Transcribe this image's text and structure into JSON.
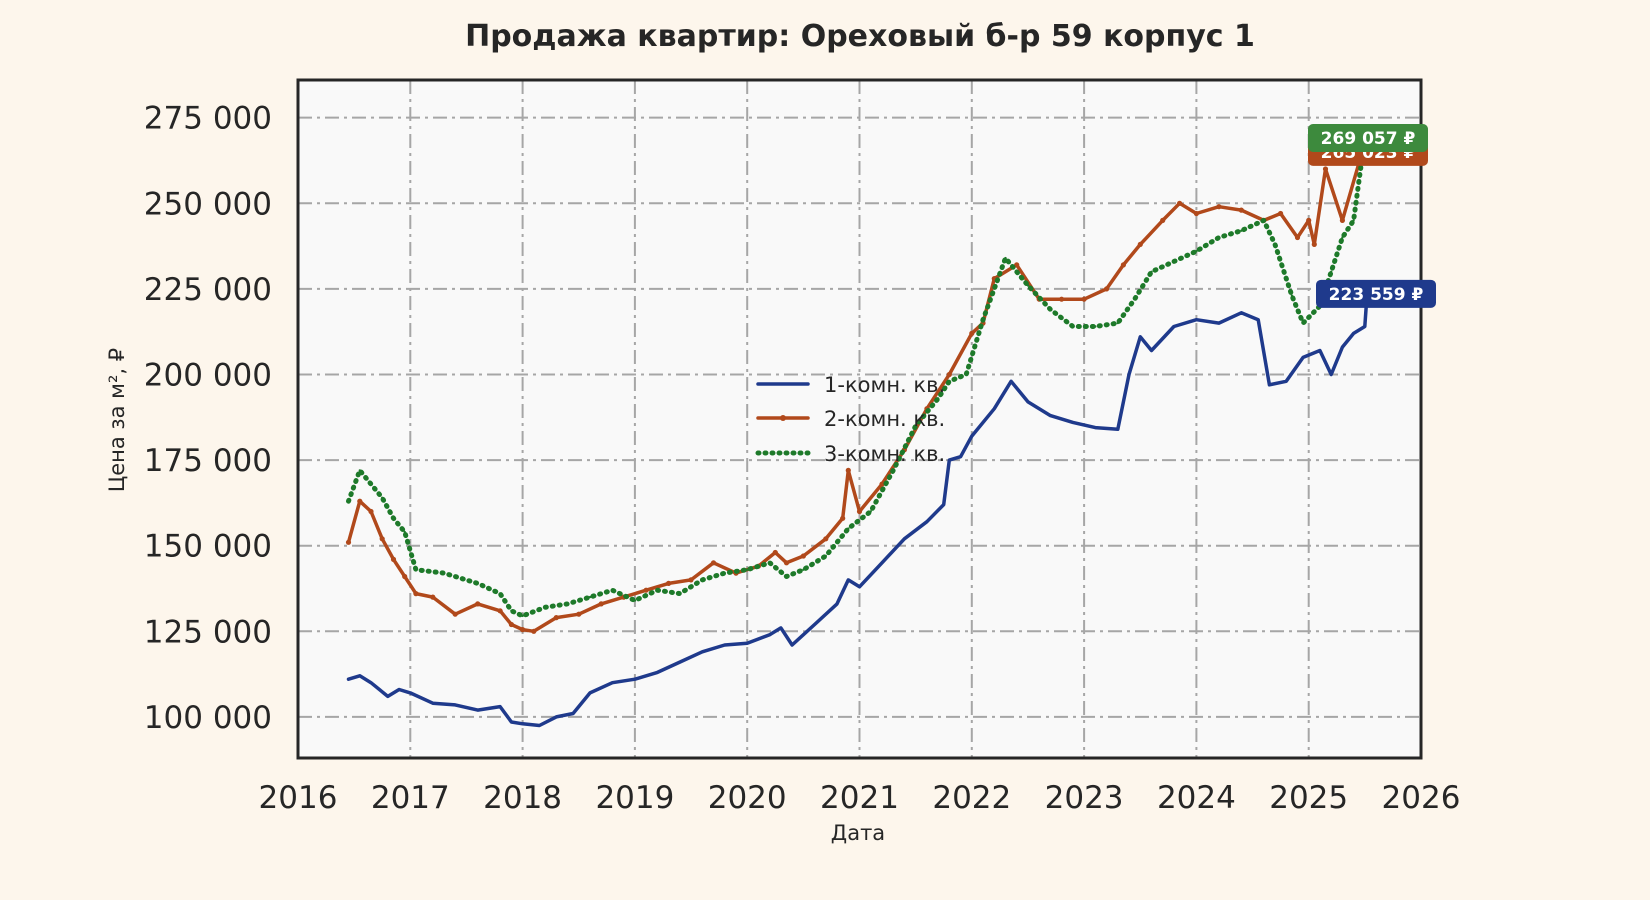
{
  "chart_data": {
    "type": "line",
    "title": "Продажа квартир: Ореховый б-р 59 корпус 1",
    "xlabel": "Дата",
    "ylabel": "Цена за м², ₽",
    "xlim": [
      2016.0,
      2026.0
    ],
    "ylim": [
      88000,
      286000
    ],
    "x_ticks": [
      2016,
      2017,
      2018,
      2019,
      2020,
      2021,
      2022,
      2023,
      2024,
      2025,
      2026
    ],
    "x_tick_labels": [
      "2016",
      "2017",
      "2018",
      "2019",
      "2020",
      "2021",
      "2022",
      "2023",
      "2024",
      "2025",
      "2026"
    ],
    "y_ticks": [
      100000,
      125000,
      150000,
      175000,
      200000,
      225000,
      250000,
      275000
    ],
    "y_tick_labels": [
      "100 000",
      "125 000",
      "150 000",
      "175 000",
      "200 000",
      "225 000",
      "250 000",
      "275 000"
    ],
    "grid": true,
    "legend_position": "center",
    "series": [
      {
        "name": "1-комн. кв.",
        "color": "#1f3a8c",
        "style": "solid",
        "x": [
          2016.45,
          2016.55,
          2016.65,
          2016.8,
          2016.9,
          2017.0,
          2017.2,
          2017.4,
          2017.6,
          2017.8,
          2017.9,
          2018.0,
          2018.15,
          2018.3,
          2018.45,
          2018.6,
          2018.8,
          2019.0,
          2019.2,
          2019.4,
          2019.6,
          2019.8,
          2020.0,
          2020.2,
          2020.3,
          2020.4,
          2020.6,
          2020.8,
          2020.9,
          2021.0,
          2021.2,
          2021.4,
          2021.6,
          2021.75,
          2021.8,
          2021.9,
          2022.0,
          2022.2,
          2022.35,
          2022.5,
          2022.7,
          2022.9,
          2023.1,
          2023.3,
          2023.4,
          2023.5,
          2023.6,
          2023.8,
          2024.0,
          2024.2,
          2024.4,
          2024.55,
          2024.65,
          2024.8,
          2024.95,
          2025.1,
          2025.2,
          2025.3,
          2025.4,
          2025.5,
          2025.52
        ],
        "values": [
          111000,
          112000,
          110000,
          106000,
          108000,
          107000,
          104000,
          103500,
          102000,
          103000,
          98500,
          98000,
          97500,
          100000,
          101000,
          107000,
          110000,
          111000,
          113000,
          116000,
          119000,
          121000,
          121500,
          124000,
          126000,
          121000,
          127000,
          133000,
          140000,
          138000,
          145000,
          152000,
          157000,
          162000,
          175000,
          176000,
          182000,
          190000,
          198000,
          192000,
          188000,
          186000,
          184500,
          184000,
          200000,
          211000,
          207000,
          214000,
          216000,
          215000,
          218000,
          216000,
          197000,
          198000,
          205000,
          207000,
          200000,
          208000,
          212000,
          214000,
          223559
        ]
      },
      {
        "name": "2-комн. кв.",
        "color": "#b1491b",
        "style": "solid-marker",
        "x": [
          2016.45,
          2016.55,
          2016.65,
          2016.75,
          2016.85,
          2016.95,
          2017.05,
          2017.2,
          2017.4,
          2017.6,
          2017.8,
          2017.9,
          2018.0,
          2018.1,
          2018.3,
          2018.5,
          2018.7,
          2018.9,
          2019.1,
          2019.3,
          2019.5,
          2019.7,
          2019.9,
          2020.1,
          2020.25,
          2020.35,
          2020.5,
          2020.7,
          2020.85,
          2020.9,
          2021.0,
          2021.2,
          2021.4,
          2021.6,
          2021.8,
          2022.0,
          2022.1,
          2022.2,
          2022.4,
          2022.6,
          2022.8,
          2023.0,
          2023.2,
          2023.35,
          2023.5,
          2023.7,
          2023.85,
          2024.0,
          2024.2,
          2024.4,
          2024.6,
          2024.75,
          2024.9,
          2025.0,
          2025.05,
          2025.15,
          2025.3,
          2025.45,
          2025.5
        ],
        "values": [
          151000,
          163000,
          160000,
          152000,
          146000,
          141000,
          136000,
          135000,
          130000,
          133000,
          131000,
          127000,
          125500,
          125000,
          129000,
          130000,
          133000,
          135000,
          137000,
          139000,
          140000,
          145000,
          142000,
          144000,
          148000,
          145000,
          147000,
          152000,
          158000,
          172000,
          160000,
          168000,
          178000,
          190000,
          200000,
          212000,
          215000,
          228000,
          232000,
          222000,
          222000,
          222000,
          225000,
          232000,
          238000,
          245000,
          250000,
          247000,
          249000,
          248000,
          245000,
          247000,
          240000,
          245000,
          238000,
          260000,
          245000,
          262000,
          265023
        ]
      },
      {
        "name": "3-комн. кв.",
        "color": "#1e7a2a",
        "style": "dotted",
        "x": [
          2016.45,
          2016.55,
          2016.65,
          2016.75,
          2016.85,
          2016.95,
          2017.05,
          2017.3,
          2017.6,
          2017.8,
          2017.9,
          2018.0,
          2018.2,
          2018.4,
          2018.6,
          2018.8,
          2019.0,
          2019.2,
          2019.4,
          2019.6,
          2019.8,
          2020.0,
          2020.2,
          2020.35,
          2020.5,
          2020.7,
          2020.9,
          2021.1,
          2021.3,
          2021.5,
          2021.7,
          2021.8,
          2021.95,
          2022.1,
          2022.3,
          2022.5,
          2022.7,
          2022.9,
          2023.1,
          2023.3,
          2023.45,
          2023.6,
          2023.8,
          2024.0,
          2024.2,
          2024.4,
          2024.6,
          2024.7,
          2024.85,
          2024.95,
          2025.1,
          2025.2,
          2025.3,
          2025.4,
          2025.5
        ],
        "values": [
          163000,
          172000,
          168000,
          164000,
          158000,
          154000,
          143000,
          142000,
          139000,
          136000,
          131000,
          129500,
          132000,
          133000,
          135000,
          137000,
          134000,
          137000,
          136000,
          140000,
          142000,
          143000,
          145000,
          141000,
          143000,
          147000,
          155000,
          160000,
          172000,
          185000,
          193000,
          198000,
          200000,
          216000,
          234000,
          226000,
          219000,
          214000,
          214000,
          215000,
          222000,
          230000,
          233000,
          236000,
          240000,
          242000,
          245000,
          238000,
          223000,
          215000,
          220000,
          230000,
          240000,
          245000,
          269057
        ]
      }
    ],
    "end_labels": [
      {
        "series": "3-комн. кв.",
        "text": "269 057 ₽",
        "color": "#3d8a3d",
        "value": 269057
      },
      {
        "series": "2-комн. кв.",
        "text": "265 023 ₽",
        "color": "#b1491b",
        "value": 265023
      },
      {
        "series": "1-комн. кв.",
        "text": "223 559 ₽",
        "color": "#1f3a8c",
        "value": 223559
      }
    ]
  }
}
